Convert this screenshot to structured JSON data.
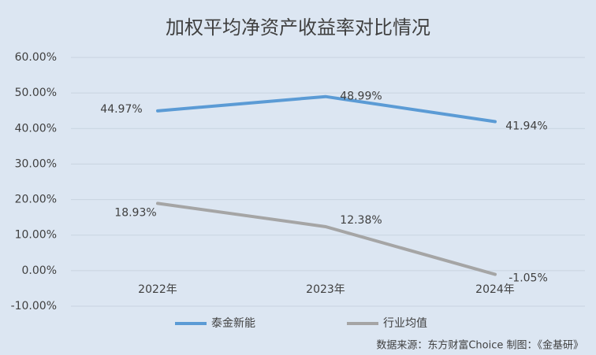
{
  "chart_data": {
    "type": "line",
    "title": "加权平均净资产收益率对比情况",
    "categories": [
      "2022年",
      "2023年",
      "2024年"
    ],
    "series": [
      {
        "name": "泰金新能",
        "color": "#5b9bd5",
        "values": [
          44.97,
          48.99,
          41.94
        ],
        "value_labels": [
          "44.97%",
          "48.99%",
          "41.94%"
        ]
      },
      {
        "name": "行业均值",
        "color": "#a5a5a5",
        "values": [
          18.93,
          12.38,
          -1.05
        ],
        "value_labels": [
          "18.93%",
          "12.38%",
          "-1.05%"
        ]
      }
    ],
    "ylim": [
      -10,
      60
    ],
    "yticks": [
      {
        "value": -10,
        "label": "-10.00%"
      },
      {
        "value": 0,
        "label": "0.00%"
      },
      {
        "value": 10,
        "label": "10.00%"
      },
      {
        "value": 20,
        "label": "20.00%"
      },
      {
        "value": 30,
        "label": "30.00%"
      },
      {
        "value": 40,
        "label": "40.00%"
      },
      {
        "value": 50,
        "label": "50.00%"
      },
      {
        "value": 60,
        "label": "60.00%"
      }
    ],
    "grid": true,
    "legend": "bottom",
    "source": "数据来源：东方财富Choice  制图：《金基研》"
  }
}
